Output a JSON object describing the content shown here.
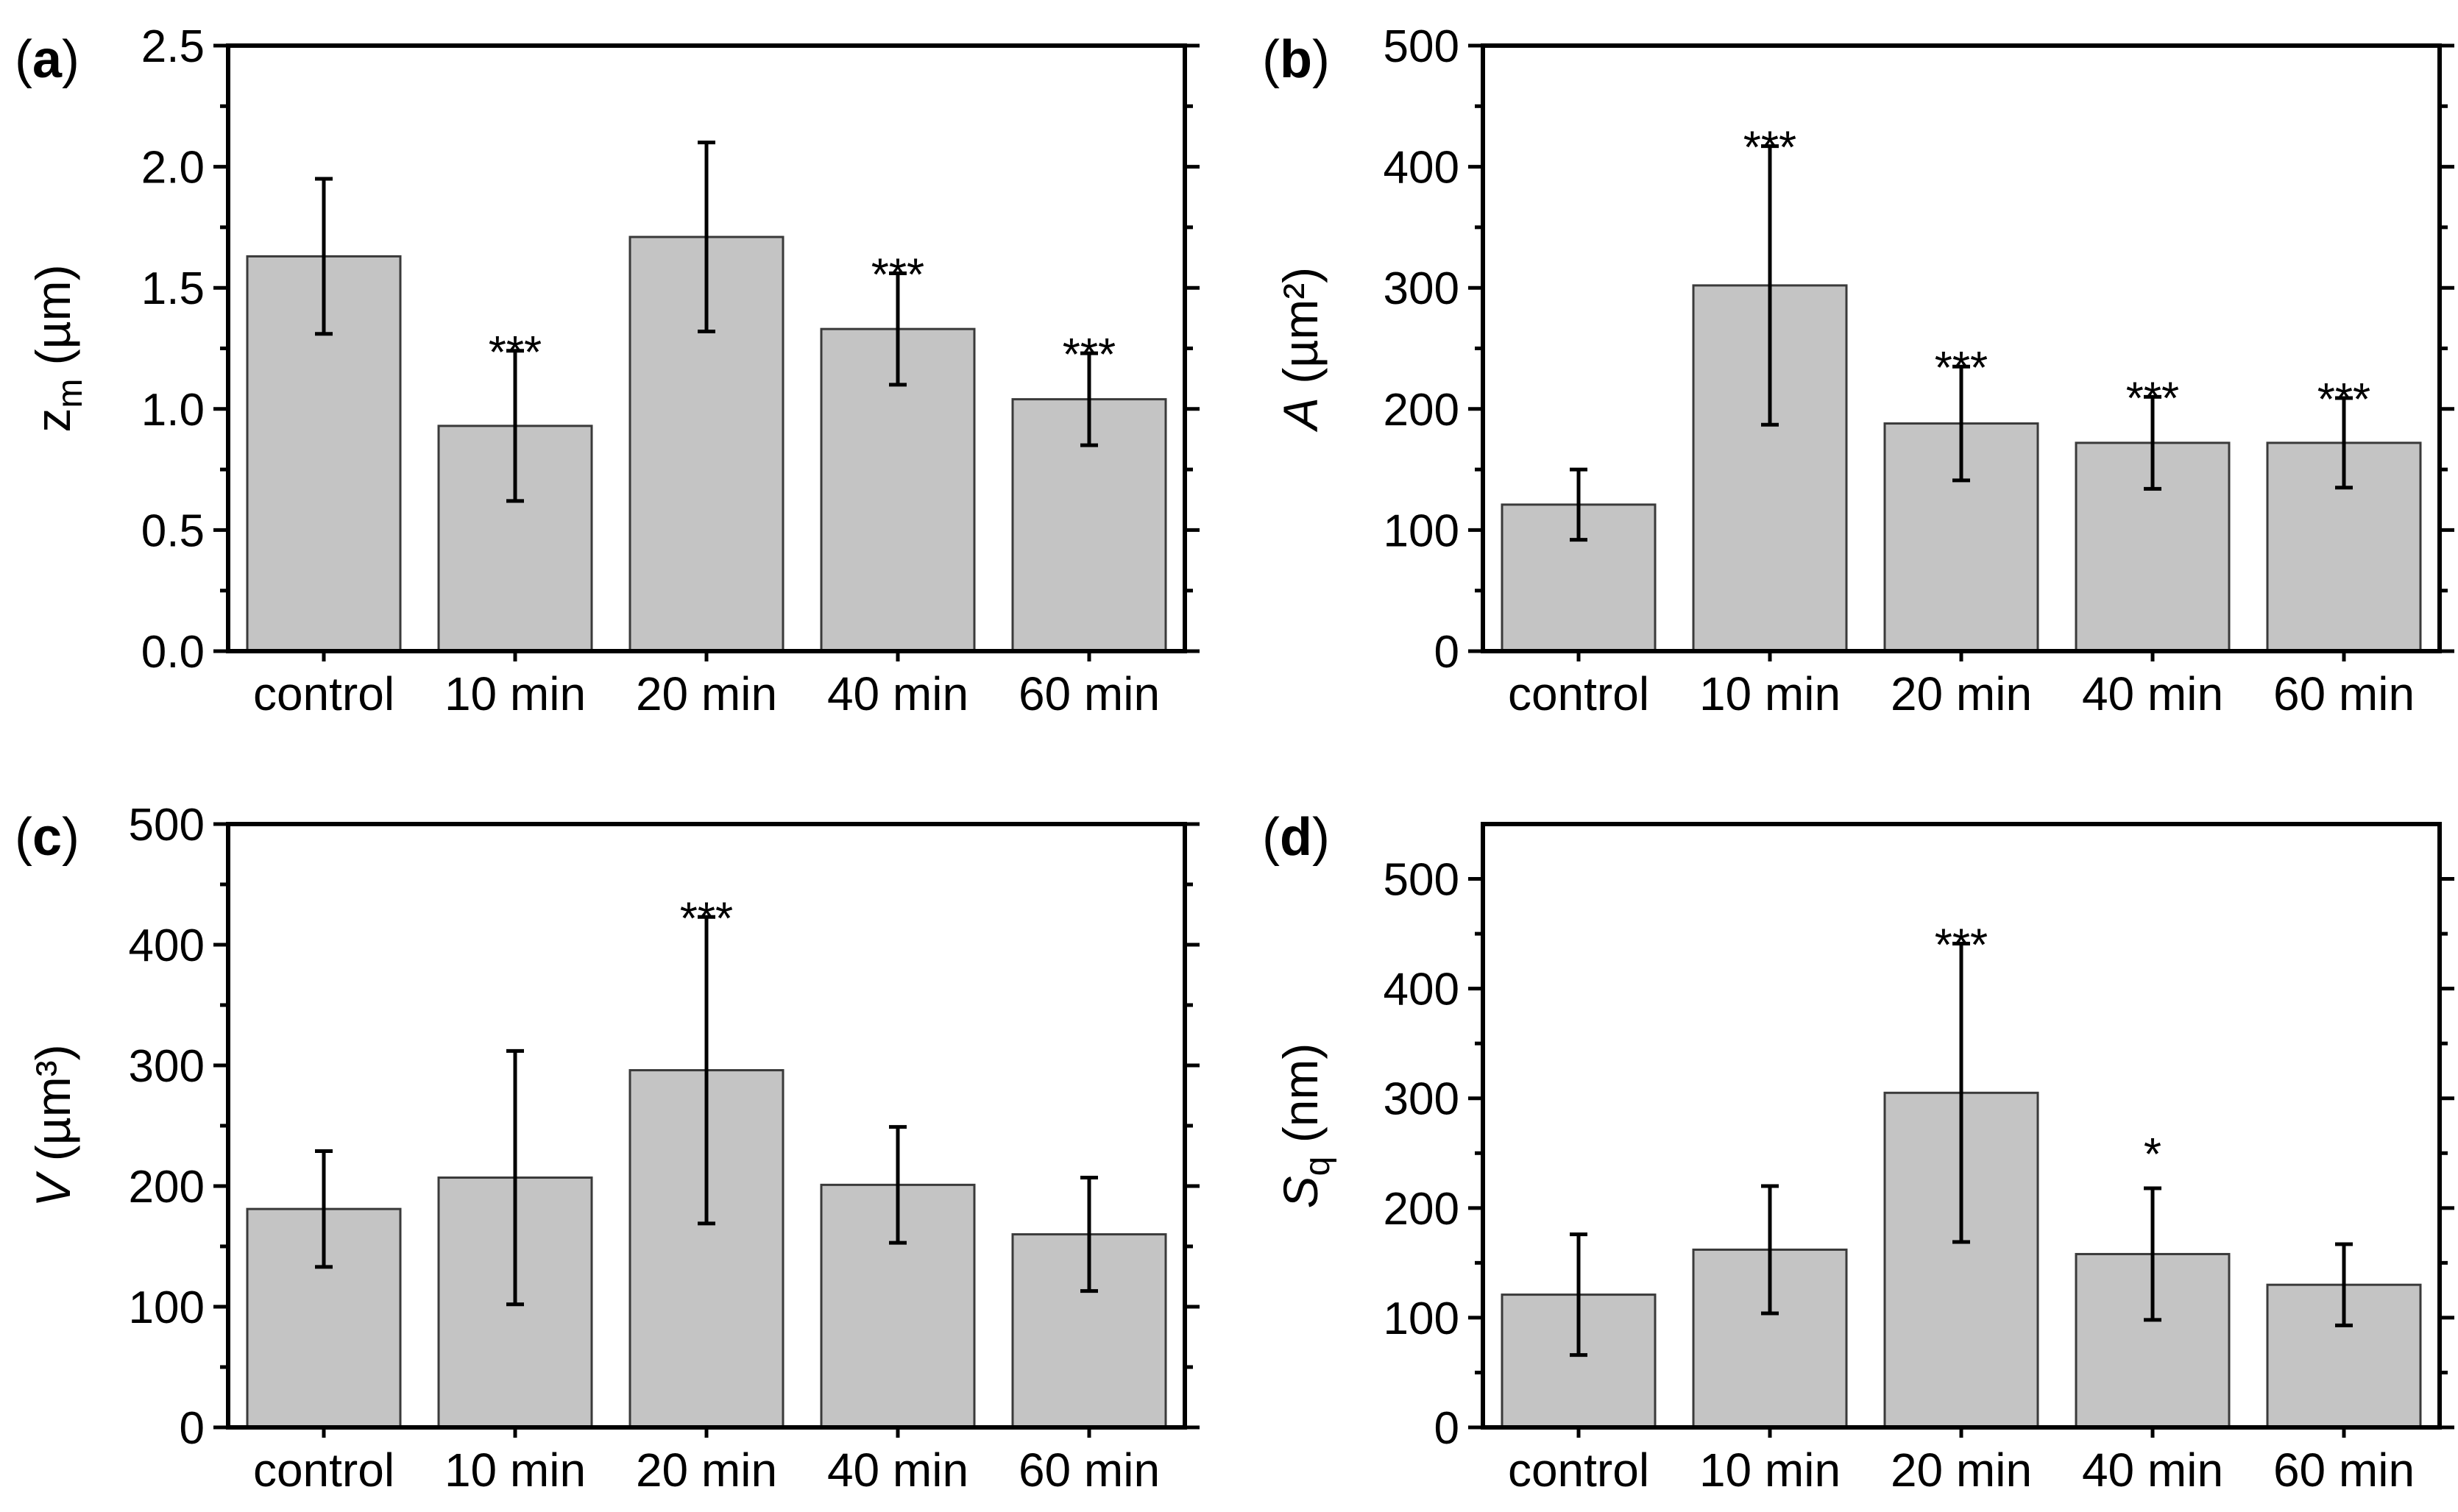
{
  "chart_data": [
    {
      "panel_label": "(a)",
      "panel_letter": "a",
      "type": "bar",
      "categories": [
        "control",
        "10 min",
        "20 min",
        "40 min",
        "60 min"
      ],
      "values": [
        1.63,
        0.93,
        1.71,
        1.33,
        1.04
      ],
      "errors": [
        0.32,
        0.31,
        0.39,
        0.23,
        0.19
      ],
      "significance": [
        "",
        "***",
        "",
        "***",
        "***"
      ],
      "ylabel": {
        "main": "z",
        "sub": "m",
        "unit": " (µm)",
        "italic": false
      },
      "ylim": [
        0,
        2.5
      ],
      "yticks": [
        "0.0",
        "0.5",
        "1.0",
        "1.5",
        "2.0",
        "2.5"
      ],
      "ytick_values": [
        0,
        0.5,
        1.0,
        1.5,
        2.0,
        2.5
      ],
      "grid": false
    },
    {
      "panel_label": "(b)",
      "panel_letter": "b",
      "type": "bar",
      "categories": [
        "control",
        "10 min",
        "20 min",
        "40 min",
        "60 min"
      ],
      "values": [
        121,
        302,
        188,
        172,
        172
      ],
      "errors": [
        29,
        115,
        47,
        38,
        37
      ],
      "significance": [
        "",
        "***",
        "***",
        "***",
        "***"
      ],
      "ylabel": {
        "main": "A",
        "sub": "",
        "unit": " (µm²)",
        "italic": true
      },
      "ylim": [
        0,
        500
      ],
      "yticks": [
        "0",
        "100",
        "200",
        "300",
        "400",
        "500"
      ],
      "ytick_values": [
        0,
        100,
        200,
        300,
        400,
        500
      ],
      "grid": false
    },
    {
      "panel_label": "(c)",
      "panel_letter": "c",
      "type": "bar",
      "categories": [
        "control",
        "10 min",
        "20 min",
        "40 min",
        "60 min"
      ],
      "values": [
        181,
        207,
        296,
        201,
        160
      ],
      "errors": [
        48,
        105,
        127,
        48,
        47
      ],
      "significance": [
        "",
        "",
        "***",
        "",
        ""
      ],
      "ylabel": {
        "main": "V",
        "sub": "",
        "unit": " (µm³)",
        "italic": true
      },
      "ylim": [
        0,
        500
      ],
      "yticks": [
        "0",
        "100",
        "200",
        "300",
        "400",
        "500"
      ],
      "ytick_values": [
        0,
        100,
        200,
        300,
        400,
        500
      ],
      "grid": false
    },
    {
      "panel_label": "(d)",
      "panel_letter": "d",
      "type": "bar",
      "categories": [
        "control",
        "10 min",
        "20 min",
        "40 min",
        "60 min"
      ],
      "values": [
        121,
        162,
        305,
        158,
        130
      ],
      "errors": [
        55,
        58,
        136,
        60,
        37
      ],
      "significance": [
        "",
        "",
        "***",
        "*",
        ""
      ],
      "ylabel": {
        "main": "S",
        "sub": "q",
        "unit": " (nm)",
        "italic": true
      },
      "ylim": [
        0,
        550
      ],
      "yticks": [
        "0",
        "100",
        "200",
        "300",
        "400",
        "500"
      ],
      "ytick_values": [
        0,
        100,
        200,
        300,
        400,
        500
      ],
      "grid": false
    }
  ],
  "colors": {
    "bar_fill": "#c4c4c4",
    "bar_edge": "#3a3a3a",
    "axis": "#000000"
  }
}
